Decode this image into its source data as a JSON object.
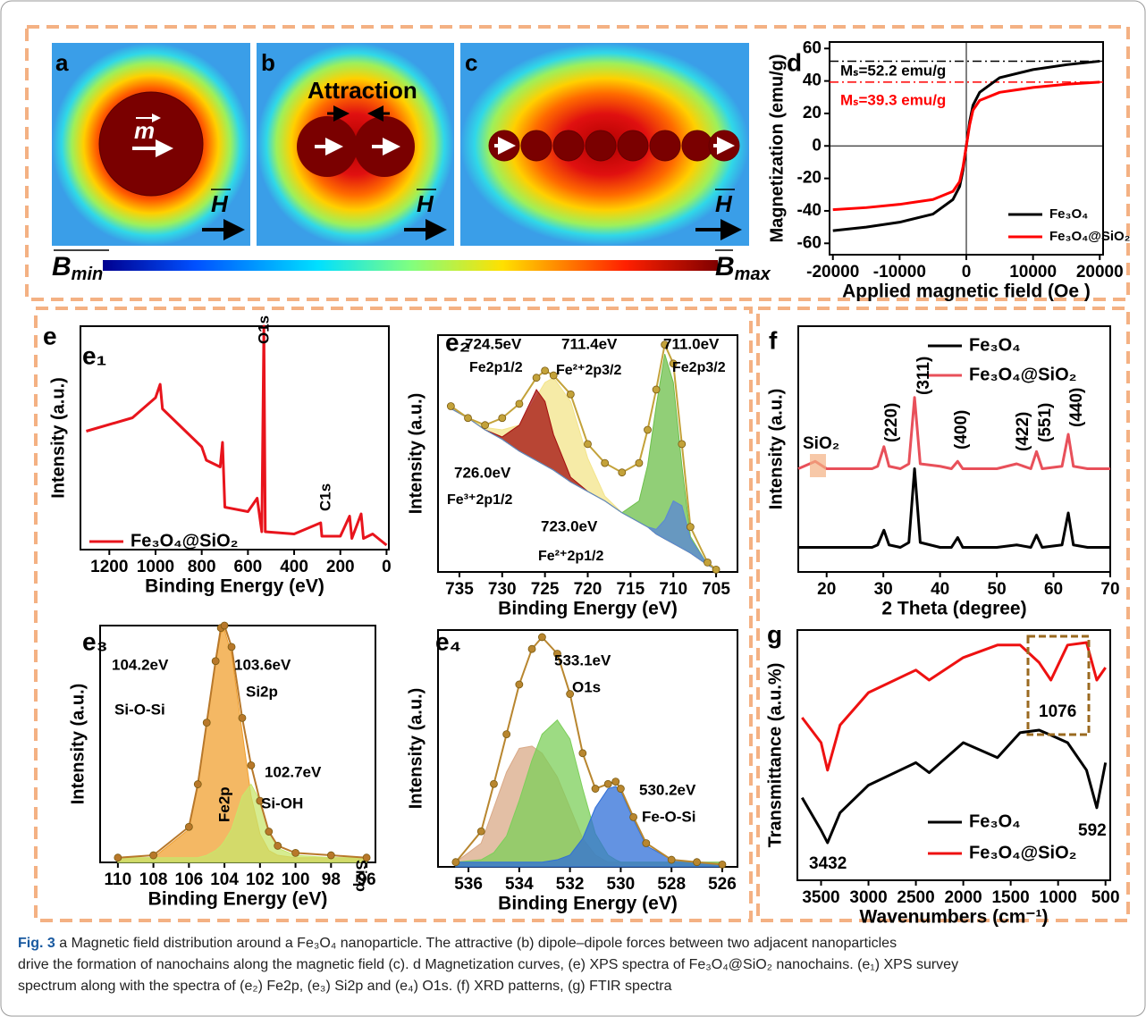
{
  "panels": {
    "a": {
      "label": "a"
    },
    "b": {
      "label": "b",
      "note": "Attraction"
    },
    "c": {
      "label": "c"
    },
    "vector_m": "m",
    "field": "H",
    "bmin": {
      "symbol": "B",
      "sub": "min"
    },
    "bmax": {
      "symbol": "B",
      "sub": "max"
    }
  },
  "labels": {
    "e": "e"
  },
  "chart_data": [
    {
      "type": "line",
      "panel_label": "d",
      "x_label": "Applied magnetic field (Oe )",
      "y_label": "Magnetization (emu/g)",
      "x": [
        -20000,
        -15000,
        -10000,
        -5000,
        -2000,
        -1000,
        -500,
        0,
        500,
        1000,
        2000,
        5000,
        10000,
        15000,
        20000
      ],
      "xlim": [
        -20500,
        20500
      ],
      "ylim": [
        -67,
        64
      ],
      "xticks": [
        -20000,
        -10000,
        0,
        10000,
        20000
      ],
      "yticks": [
        -60,
        -40,
        -20,
        0,
        20,
        40,
        60
      ],
      "series": [
        {
          "name": "Fe₃O₄",
          "color": "#000000",
          "values": [
            -52.2,
            -50,
            -47,
            -42,
            -33,
            -25,
            -15,
            0,
            15,
            25,
            33,
            42,
            47,
            50,
            52.2
          ]
        },
        {
          "name": "Fe₃O₄@SiO₂",
          "color": "#ff0000",
          "values": [
            -39.3,
            -38,
            -36,
            -33,
            -28,
            -22,
            -13,
            0,
            13,
            22,
            28,
            33,
            36,
            38,
            39.3
          ]
        }
      ],
      "reference_lines": [
        {
          "value": 52.2,
          "color": "#000000"
        },
        {
          "value": 39.3,
          "color": "#ff0000"
        }
      ],
      "annotations": [
        "Mₛ=52.2 emu/g",
        "Mₛ=39.3 emu/g"
      ]
    },
    {
      "type": "line",
      "panel_label": "e₁",
      "x_label": "Binding Energy (eV)",
      "y_label": "Intensity (a.u.)",
      "x": [
        1300,
        1100,
        1000,
        980,
        970,
        900,
        800,
        780,
        720,
        710,
        700,
        600,
        560,
        540,
        531,
        525,
        400,
        285,
        280,
        200,
        160,
        150,
        110,
        100,
        60,
        0
      ],
      "xlim": [
        1325,
        -10
      ],
      "ylim": [
        0,
        100
      ],
      "xticks": [
        1200,
        1000,
        800,
        600,
        400,
        200,
        0
      ],
      "series": [
        {
          "name": "Fe₃O₄@SiO₂",
          "color": "#e8141c",
          "values": [
            53,
            59,
            68,
            74,
            63,
            56,
            46,
            40,
            37,
            48,
            19,
            17,
            23,
            8,
            100,
            8,
            7,
            12,
            6,
            6,
            15,
            5,
            16,
            5,
            7,
            2
          ]
        }
      ],
      "annotations": [
        "O1s",
        "C1s"
      ]
    },
    {
      "type": "line",
      "panel_label": "e₂",
      "x_label": "Binding Energy (eV)",
      "y_label": "Intensity (a.u.)",
      "x": [
        736,
        734,
        732,
        730,
        728,
        726,
        725,
        724,
        722,
        720,
        718,
        716,
        714,
        713,
        712,
        711,
        710,
        709,
        708,
        706,
        705
      ],
      "xlim": [
        737.5,
        702.5
      ],
      "ylim": [
        0,
        100
      ],
      "xticks": [
        735,
        730,
        725,
        720,
        715,
        710,
        705
      ],
      "background": {
        "values": [
          69,
          65,
          60,
          56,
          51,
          47,
          45,
          43,
          38,
          34,
          30,
          25,
          21,
          19,
          16,
          14,
          12,
          10,
          8,
          3,
          1
        ]
      },
      "series": [
        {
          "color": "#f3e48a",
          "fill": true,
          "values": [
            69,
            65,
            61,
            60,
            62,
            74,
            80,
            82,
            72,
            48,
            32,
            25,
            21,
            19,
            16,
            14,
            12,
            10,
            8,
            3,
            1
          ]
        },
        {
          "color": "#a30d0d",
          "fill": true,
          "values": [
            69,
            65,
            60,
            57,
            62,
            77,
            72,
            58,
            40,
            34,
            30,
            25,
            21,
            19,
            16,
            14,
            12,
            10,
            8,
            3,
            1
          ]
        },
        {
          "color": "#6cbf4a",
          "fill": true,
          "values": [
            69,
            65,
            60,
            56,
            51,
            47,
            45,
            43,
            38,
            34,
            30,
            25,
            30,
            45,
            70,
            92,
            80,
            45,
            15,
            3,
            1
          ]
        },
        {
          "color": "#5a86d8",
          "fill": true,
          "values": [
            69,
            65,
            60,
            56,
            51,
            47,
            45,
            43,
            38,
            34,
            30,
            25,
            21,
            19,
            18,
            22,
            30,
            28,
            14,
            3,
            1
          ]
        },
        {
          "color": "#c3a23a",
          "dots": true,
          "values": [
            70,
            65,
            62,
            65,
            71,
            82,
            85,
            83,
            75,
            54,
            46,
            42,
            46,
            60,
            77,
            96,
            88,
            54,
            19,
            4,
            1
          ]
        }
      ],
      "annotations": [
        "724.5eV",
        "Fe2p1/2",
        "711.4eV",
        "Fe²⁺2p3/2",
        "711.0eV",
        "Fe2p3/2",
        "726.0eV",
        "Fe³⁺2p1/2",
        "723.0eV",
        "Fe²⁺2p1/2"
      ]
    },
    {
      "type": "line",
      "panel_label": "e₃",
      "x_label": "Binding Energy (eV)",
      "y_label": "Intensity (a.u.)",
      "x": [
        110,
        108,
        106,
        105.5,
        105,
        104.5,
        104.2,
        104,
        103.6,
        103,
        102.5,
        102,
        101.5,
        101,
        100,
        98,
        96
      ],
      "xlim": [
        111,
        95.5
      ],
      "ylim": [
        0,
        100
      ],
      "xticks": [
        110,
        108,
        106,
        104,
        102,
        100,
        98,
        96
      ],
      "series": [
        {
          "color": "#f0a030",
          "fill": true,
          "values": [
            2,
            2,
            14,
            32,
            58,
            84,
            97,
            98,
            88,
            55,
            28,
            12,
            5,
            3,
            2,
            2,
            2
          ]
        },
        {
          "color": "#c8e66c",
          "fill": true,
          "values": [
            2,
            2,
            2,
            2,
            3,
            5,
            7,
            9,
            14,
            28,
            33,
            26,
            13,
            6,
            3,
            2,
            2
          ]
        },
        {
          "color": "#b8782a",
          "dots": true,
          "values": [
            2,
            3,
            15,
            33,
            59,
            85,
            99,
            100,
            91,
            61,
            41,
            26,
            13,
            7,
            4,
            3,
            2
          ]
        }
      ],
      "annotations": [
        "104.2eV",
        "Si-O-Si",
        "103.6eV",
        "Si2p",
        "102.7eV",
        "Si-OH",
        "Fe2p",
        "Si2p"
      ]
    },
    {
      "type": "line",
      "panel_label": "e₄",
      "x_label": "Binding Energy (eV)",
      "y_label": "Intensity (a.u.)",
      "x": [
        536.5,
        535.5,
        535,
        534.5,
        534,
        533.5,
        533.1,
        532.5,
        532,
        531.5,
        531,
        530.5,
        530.2,
        530,
        529.5,
        529,
        528,
        527,
        526
      ],
      "xlim": [
        537.2,
        525.4
      ],
      "ylim": [
        0,
        100
      ],
      "xticks": [
        536,
        534,
        532,
        530,
        528,
        526
      ],
      "series": [
        {
          "color": "#d9a987",
          "fill": true,
          "values": [
            2,
            10,
            25,
            40,
            50,
            51,
            48,
            38,
            25,
            12,
            5,
            2,
            2,
            2,
            2,
            2,
            2,
            2,
            2
          ]
        },
        {
          "color": "#7ccf5a",
          "fill": true,
          "values": [
            2,
            3,
            6,
            13,
            28,
            45,
            56,
            62,
            54,
            33,
            14,
            5,
            3,
            2,
            2,
            2,
            2,
            2,
            2
          ]
        },
        {
          "color": "#2f6fd8",
          "fill": true,
          "values": [
            2,
            2,
            2,
            2,
            2,
            2,
            2,
            3,
            5,
            12,
            25,
            33,
            34,
            32,
            20,
            9,
            3,
            2,
            1
          ]
        },
        {
          "color": "#b8862f",
          "dots": true,
          "values": [
            2,
            15,
            35,
            56,
            77,
            92,
            97,
            90,
            73,
            48,
            33,
            35,
            36,
            33,
            21,
            10,
            3,
            2,
            1
          ]
        }
      ],
      "annotations": [
        "533.1eV",
        "O1s",
        "530.2eV",
        "Fe-O-Si"
      ]
    },
    {
      "type": "line",
      "panel_label": "f",
      "x_label": "2 Theta (degree)",
      "y_label": "Intensity (a.u.)",
      "x": [
        15,
        18,
        20,
        25,
        28,
        29,
        30.1,
        31,
        33,
        34.5,
        35.5,
        36.5,
        40,
        42,
        43.1,
        44,
        50,
        53.5,
        56,
        57,
        58,
        61.5,
        62.6,
        63.5,
        66,
        70
      ],
      "xlim": [
        15,
        70
      ],
      "ylim": [
        0,
        100
      ],
      "xticks": [
        20,
        30,
        40,
        50,
        60,
        70
      ],
      "series": [
        {
          "name": "Fe₃O₄",
          "color": "#000000",
          "values": [
            10,
            10,
            10,
            10,
            10,
            11,
            17,
            11,
            10,
            12,
            42,
            12,
            10,
            10,
            14,
            10,
            10,
            11,
            10,
            15,
            10,
            11,
            24,
            11,
            10,
            10
          ]
        },
        {
          "name": "Fe₃O₄@SiO₂",
          "color": "#e8505a",
          "values": [
            42,
            45,
            42,
            42,
            42,
            43,
            51,
            43,
            42,
            44,
            71,
            44,
            43,
            42,
            45,
            42,
            42,
            44,
            42,
            49,
            42,
            43,
            56,
            43,
            42,
            42
          ]
        }
      ],
      "annotations": [
        "SiO₂",
        "(220)",
        "(311)",
        "(400)",
        "(422)",
        "(551)",
        "(440)"
      ]
    },
    {
      "type": "line",
      "panel_label": "g",
      "x_label": "Wavenumbers (cm⁻¹)",
      "y_label": "Transmittance (a.u.%)",
      "x": [
        3700,
        3500,
        3432,
        3300,
        3000,
        2500,
        2360,
        2000,
        1640,
        1400,
        1200,
        1076,
        900,
        700,
        592,
        500
      ],
      "xlim": [
        3750,
        450
      ],
      "ylim": [
        0,
        100
      ],
      "xticks": [
        3500,
        3000,
        2500,
        2000,
        1500,
        1000,
        500
      ],
      "series": [
        {
          "name": "Fe₃O₄",
          "color": "#000000",
          "values": [
            33,
            20,
            15,
            27,
            38,
            47,
            43,
            55,
            49,
            59,
            60,
            58,
            55,
            44,
            29,
            47
          ]
        },
        {
          "name": "Fe₃O₄@SiO₂",
          "color": "#ee1111",
          "values": [
            65,
            55,
            44,
            62,
            75,
            84,
            80,
            89,
            94,
            94,
            87,
            80,
            94,
            95,
            80,
            85
          ]
        }
      ],
      "annotations": [
        "3432",
        "1076",
        "592"
      ]
    }
  ],
  "caption": {
    "label": "Fig. 3",
    "lines": [
      " a Magnetic field distribution around a Fe₃O₄ nanoparticle. The attractive (b) dipole–dipole forces between two adjacent nanoparticles",
      "drive the formation of nanochains along the magnetic field (c). d Magnetization curves, (e) XPS spectra of Fe₃O₄@SiO₂ nanochains. (e₁) XPS survey",
      "spectrum along with the spectra of (e₂) Fe2p, (e₃) Si2p and (e₄) O1s. (f) XRD patterns, (g) FTIR spectra"
    ]
  }
}
